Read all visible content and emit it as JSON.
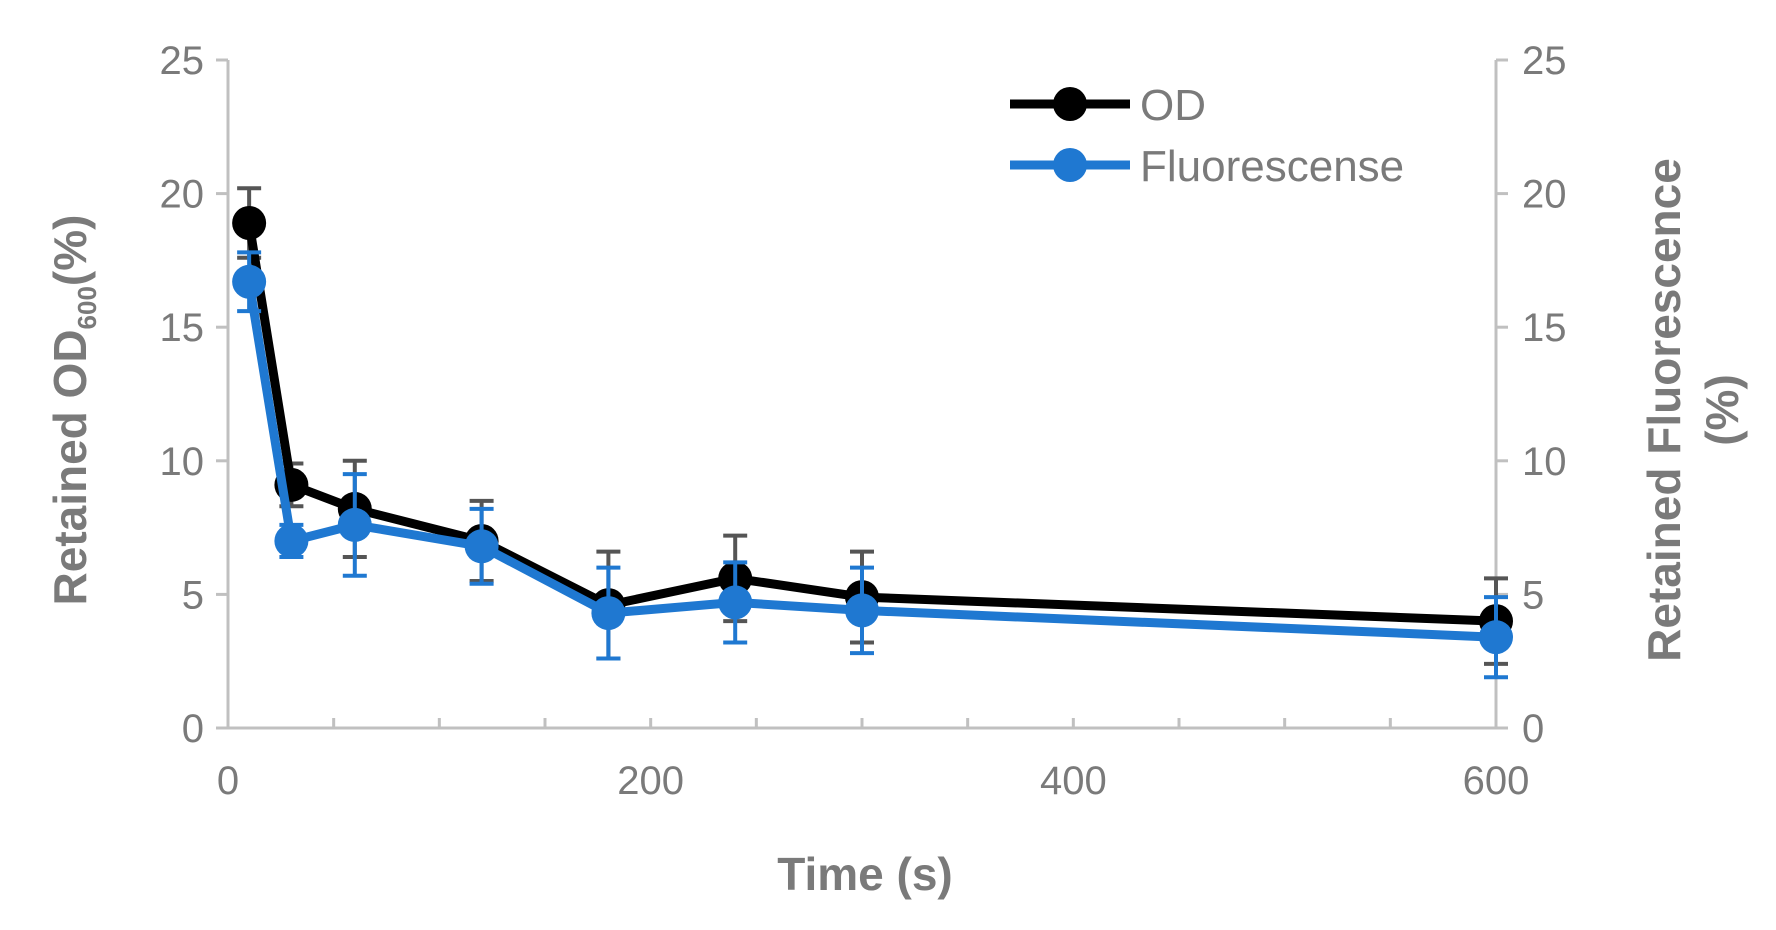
{
  "chart_data": {
    "type": "line",
    "title": "",
    "xlabel": "Time (s)",
    "ylabel_left": {
      "main": "Retained OD",
      "sub": "600",
      "tail": "(%)"
    },
    "ylabel_right_lines": [
      "Retained Fluorescence",
      "(%)"
    ],
    "xlim": [
      0,
      600
    ],
    "ylim": [
      0,
      25
    ],
    "x_ticks": [
      0,
      200,
      400,
      600
    ],
    "x_tick_labels": [
      "0",
      "200",
      "400",
      "600"
    ],
    "x_minor_step": 50,
    "y_ticks": [
      0,
      5,
      10,
      15,
      20,
      25
    ],
    "y_tick_labels": [
      "0",
      "5",
      "10",
      "15",
      "20",
      "25"
    ],
    "grid": false,
    "legend_position": "top-right",
    "series": [
      {
        "name": "OD",
        "color": "#000000",
        "errorbar_color": "#555555",
        "x": [
          10,
          30,
          60,
          120,
          180,
          240,
          300,
          600
        ],
        "y": [
          18.9,
          9.1,
          8.2,
          7.0,
          4.6,
          5.6,
          4.9,
          4.0
        ],
        "err": [
          1.3,
          0.8,
          1.8,
          1.5,
          2.0,
          1.6,
          1.7,
          1.6
        ]
      },
      {
        "name": "Fluorescense",
        "color": "#1f78d1",
        "errorbar_color": "#1f78d1",
        "x": [
          10,
          30,
          60,
          120,
          180,
          240,
          300,
          600
        ],
        "y": [
          16.7,
          7.0,
          7.6,
          6.8,
          4.3,
          4.7,
          4.4,
          3.4
        ],
        "err": [
          1.1,
          0.6,
          1.9,
          1.4,
          1.7,
          1.5,
          1.6,
          1.5
        ]
      }
    ]
  }
}
